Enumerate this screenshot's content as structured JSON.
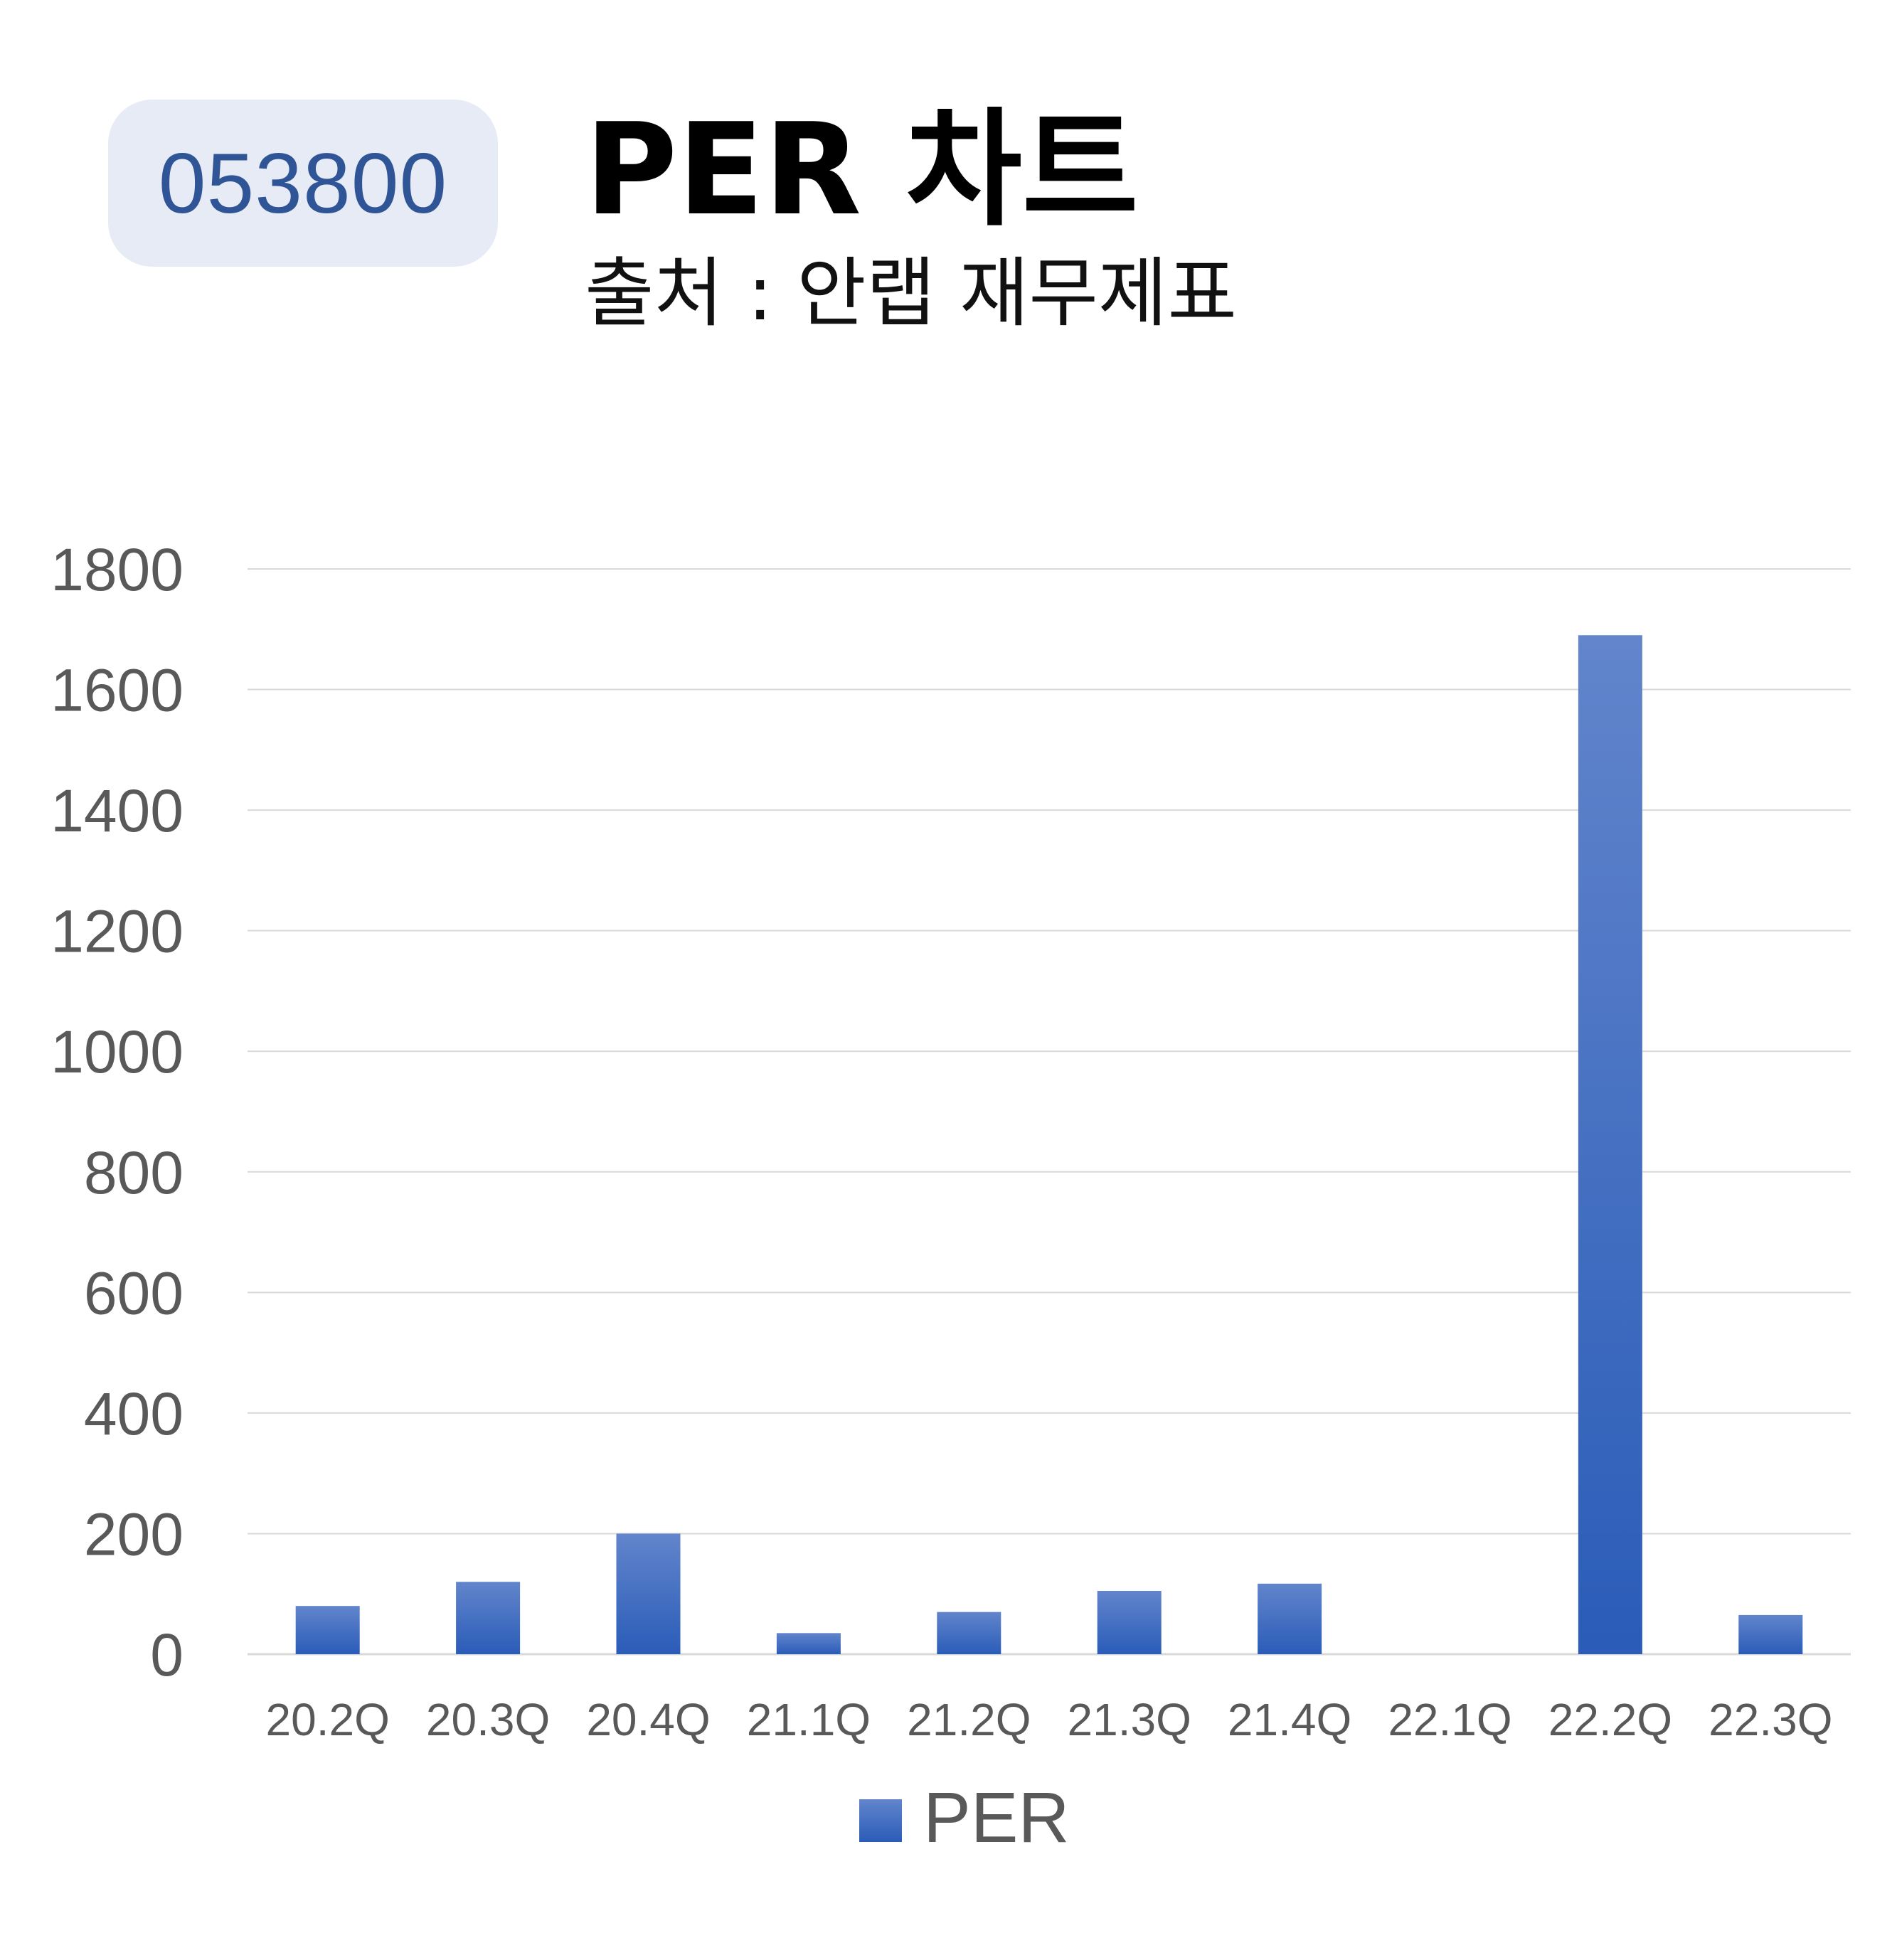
{
  "header": {
    "ticker": "053800",
    "title": "PER 차트",
    "subtitle": "출처 : 안랩 재무제표"
  },
  "colors": {
    "bar_top": "#6285cc",
    "bar_bottom": "#2a5cb8",
    "gridline": "#d9d9d9",
    "axis_text": "#595959",
    "badge_bg": "#e6ebf5",
    "badge_text": "#2f5596"
  },
  "chart_data": {
    "type": "bar",
    "categories": [
      "20.2Q",
      "20.3Q",
      "20.4Q",
      "21.1Q",
      "21.2Q",
      "21.3Q",
      "21.4Q",
      "22.1Q",
      "22.2Q",
      "22.3Q"
    ],
    "series": [
      {
        "name": "PER",
        "values": [
          80,
          120,
          200,
          35,
          70,
          105,
          117,
          0,
          1690,
          65
        ]
      }
    ],
    "yticks": [
      0,
      200,
      400,
      600,
      800,
      1000,
      1200,
      1400,
      1600,
      1800
    ],
    "ylim": [
      0,
      1800
    ],
    "grid": true,
    "legend_position": "bottom"
  }
}
